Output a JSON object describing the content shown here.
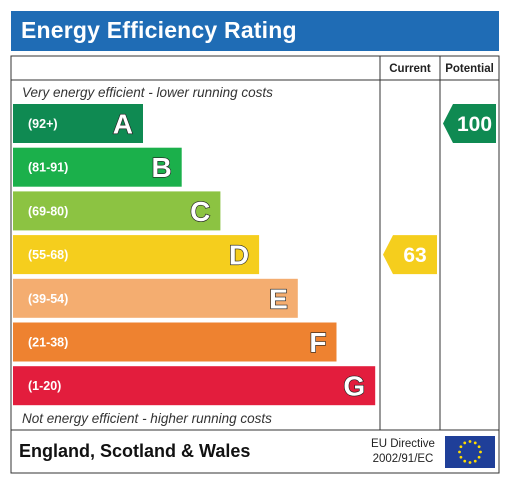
{
  "title": "Energy Efficiency Rating",
  "chart_data": {
    "type": "bar",
    "title": "Energy Efficiency Rating",
    "columns": [
      "Current",
      "Potential"
    ],
    "top_note": "Very energy efficient - lower running costs",
    "bottom_note": "Not energy efficient - higher running costs",
    "bands": [
      {
        "range": "(92+)",
        "letter": "A",
        "color": "#0f8a52"
      },
      {
        "range": "(81-91)",
        "letter": "B",
        "color": "#1bb04b"
      },
      {
        "range": "(69-80)",
        "letter": "C",
        "color": "#8cc342"
      },
      {
        "range": "(55-68)",
        "letter": "D",
        "color": "#f5ce1d"
      },
      {
        "range": "(39-54)",
        "letter": "E",
        "color": "#f4ad70"
      },
      {
        "range": "(21-38)",
        "letter": "F",
        "color": "#ee8230"
      },
      {
        "range": "(1-20)",
        "letter": "G",
        "color": "#e31d3d"
      }
    ],
    "current": {
      "value": 63,
      "band": "D",
      "color": "#f5ce1d"
    },
    "potential": {
      "value": 100,
      "band": "A",
      "color": "#0f8a52"
    }
  },
  "footer": {
    "region": "England, Scotland & Wales",
    "directive_line1": "EU Directive",
    "directive_line2": "2002/91/EC"
  },
  "flag": {
    "name": "eu-flag-icon",
    "bg": "#1f3f99",
    "stars": "#ffde00"
  }
}
